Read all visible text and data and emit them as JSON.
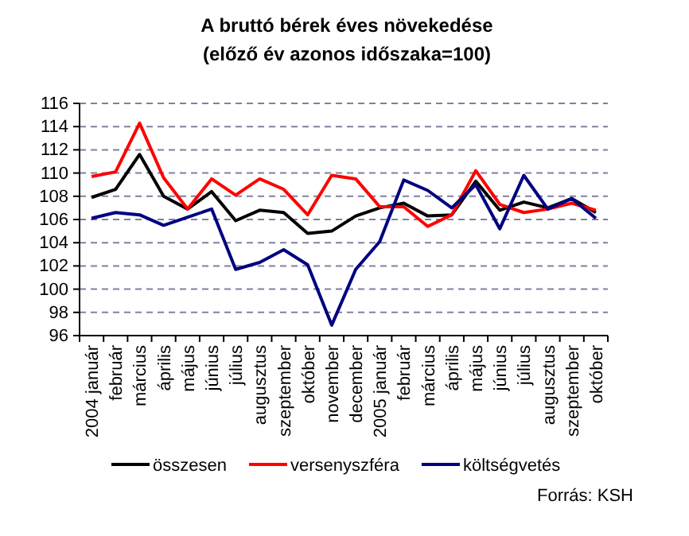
{
  "chart_data": {
    "type": "line",
    "title": "A bruttó bérek éves növekedése",
    "subtitle": "(előző év azonos időszaka=100)",
    "categories": [
      "2004 január",
      "február",
      "március",
      "április",
      "május",
      "június",
      "július",
      "augusztus",
      "szeptember",
      "október",
      "november",
      "december",
      "2005 január",
      "február",
      "március",
      "április",
      "május",
      "június",
      "július",
      "augusztus",
      "szeptember",
      "október"
    ],
    "series": [
      {
        "name": "összesen",
        "color": "#000000",
        "values": [
          107.9,
          108.6,
          111.6,
          108.0,
          106.9,
          108.4,
          105.9,
          106.8,
          106.6,
          104.8,
          105.0,
          106.3,
          107.0,
          107.4,
          106.3,
          106.4,
          109.3,
          106.8,
          107.5,
          107.0,
          107.8,
          106.6
        ]
      },
      {
        "name": "versenyszféra",
        "color": "#ff0000",
        "values": [
          109.7,
          110.1,
          114.3,
          109.6,
          106.9,
          109.5,
          108.1,
          109.5,
          108.6,
          106.4,
          109.8,
          109.5,
          107.1,
          107.1,
          105.4,
          106.4,
          110.2,
          107.3,
          106.6,
          106.9,
          107.4,
          106.8
        ]
      },
      {
        "name": "költségvetés",
        "color": "#000080",
        "values": [
          106.1,
          106.6,
          106.4,
          105.5,
          106.2,
          106.9,
          101.7,
          102.3,
          103.4,
          102.1,
          96.9,
          101.7,
          104.1,
          109.4,
          108.5,
          107.0,
          109.0,
          105.2,
          109.8,
          106.9,
          107.8,
          106.1
        ]
      }
    ],
    "ylim": [
      96,
      116
    ],
    "yticks": [
      96,
      98,
      100,
      102,
      104,
      106,
      108,
      110,
      112,
      114,
      116
    ],
    "grid": "y",
    "legend": "bottom",
    "marker": "none",
    "line_style": "solid",
    "annotations": [
      "Forrás: KSH"
    ]
  }
}
